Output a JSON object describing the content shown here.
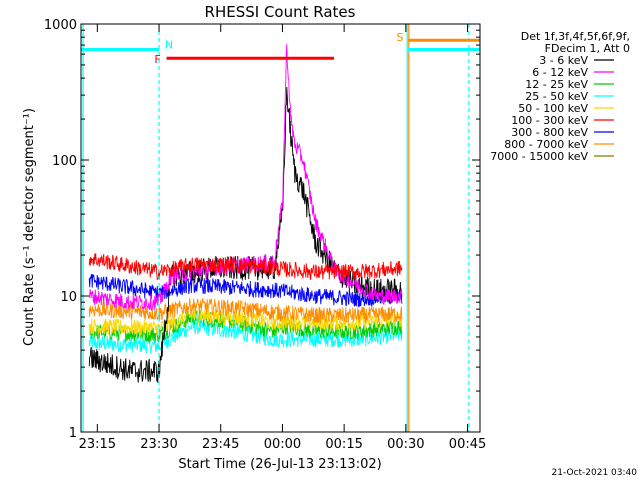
{
  "chart_data": {
    "type": "line",
    "title": "RHESSI Count Rates",
    "xlabel": "Start Time (26-Jul-13 23:13:02)",
    "ylabel": "Count Rate (s⁻¹ detector segment⁻¹)",
    "y_scale": "log",
    "ylim": [
      1,
      1000
    ],
    "xlim_minutes_after_start": [
      -2,
      95
    ],
    "x_tick_labels": [
      "23:15",
      "23:30",
      "23:45",
      "00:00",
      "00:15",
      "00:30",
      "00:45"
    ],
    "x_tick_minutes": [
      1.97,
      16.97,
      31.97,
      46.97,
      61.97,
      76.97,
      91.97
    ],
    "y_tick_labels": [
      "1",
      "10",
      "100",
      "1000"
    ],
    "y_tick_values": [
      1,
      10,
      100,
      1000
    ],
    "legend_header": [
      "Det 1f,3f,4f,5f,6f,9f,",
      "FDecim 1, Att 0"
    ],
    "legend_position": "right",
    "grid": false,
    "series": [
      {
        "name": "3 - 6 keV",
        "color": "#000000",
        "x": [
          0,
          10,
          17,
          20,
          30,
          45,
          47,
          48,
          49,
          50,
          52,
          55,
          60,
          65,
          70,
          76
        ],
        "y": [
          3.5,
          2.8,
          2.8,
          14,
          16,
          16,
          40,
          330,
          150,
          80,
          60,
          25,
          15,
          12,
          11,
          11
        ]
      },
      {
        "name": "6 - 12 keV",
        "color": "#ff00ff",
        "x": [
          0,
          10,
          17,
          20,
          30,
          45,
          47,
          48,
          49,
          50,
          52,
          55,
          60,
          65,
          70,
          76
        ],
        "y": [
          10,
          9,
          9,
          14,
          16,
          18,
          50,
          700,
          200,
          130,
          100,
          35,
          15,
          12,
          10,
          10
        ]
      },
      {
        "name": "12 - 25 keV",
        "color": "#00cc00",
        "x": [
          0,
          17,
          25,
          35,
          45,
          48,
          55,
          65,
          76
        ],
        "y": [
          5.5,
          5.2,
          7,
          6.5,
          5.5,
          6,
          5.5,
          5.5,
          6
        ]
      },
      {
        "name": "25 - 50 keV",
        "color": "#00ffff",
        "x": [
          0,
          17,
          25,
          35,
          45,
          55,
          65,
          76
        ],
        "y": [
          4.5,
          4.3,
          6,
          5.5,
          4.8,
          4.8,
          4.8,
          5.2
        ]
      },
      {
        "name": "50 - 100 keV",
        "color": "#ffd700",
        "x": [
          0,
          17,
          25,
          35,
          45,
          55,
          65,
          76
        ],
        "y": [
          6,
          5.8,
          7.2,
          7,
          6.4,
          6.4,
          6.4,
          6.8
        ]
      },
      {
        "name": "100 - 300 keV",
        "color": "#ff0000",
        "x": [
          0,
          17,
          25,
          35,
          45,
          55,
          65,
          76
        ],
        "y": [
          19,
          15,
          17,
          17,
          16,
          15,
          15,
          16
        ]
      },
      {
        "name": "300 - 800 keV",
        "color": "#0000ff",
        "x": [
          0,
          17,
          25,
          35,
          45,
          55,
          65,
          76
        ],
        "y": [
          13,
          10.5,
          12,
          11.5,
          11,
          10,
          9.5,
          10
        ]
      },
      {
        "name": "800 - 7000 keV",
        "color": "#ff8c00",
        "x": [
          0,
          17,
          25,
          35,
          45,
          55,
          65,
          76
        ],
        "y": [
          8,
          7.5,
          8.5,
          8.2,
          7.6,
          7.2,
          7.2,
          7.4
        ]
      },
      {
        "name": "7000 - 15000 keV",
        "color": "#808000",
        "x": [],
        "y": []
      }
    ],
    "flag_bars": [
      {
        "label": "N",
        "color": "#00ffff",
        "x": [
          -2,
          16.97
        ],
        "y": 650
      },
      {
        "label": "F",
        "color": "#ff0000",
        "x": [
          18.8,
          59.5
        ],
        "y": 560
      },
      {
        "label": "S",
        "color": "#ff8c00",
        "x": [
          77.5,
          95
        ],
        "y": 760
      },
      {
        "label": "",
        "color": "#00ffff",
        "x": [
          77.5,
          95
        ],
        "y": 650
      }
    ],
    "vertical_markers": [
      {
        "x": -1.5,
        "color": "#00ffff",
        "style": "solid"
      },
      {
        "x": 16.97,
        "color": "#00ffff",
        "style": "dashed"
      },
      {
        "x": 77.3,
        "color": "#00ffff",
        "style": "solid"
      },
      {
        "x": 77.7,
        "color": "#ff8c00",
        "style": "solid"
      },
      {
        "x": 92.3,
        "color": "#00ffff",
        "style": "dashed"
      }
    ]
  },
  "footer": {
    "date": "21-Oct-2021 03:40"
  }
}
